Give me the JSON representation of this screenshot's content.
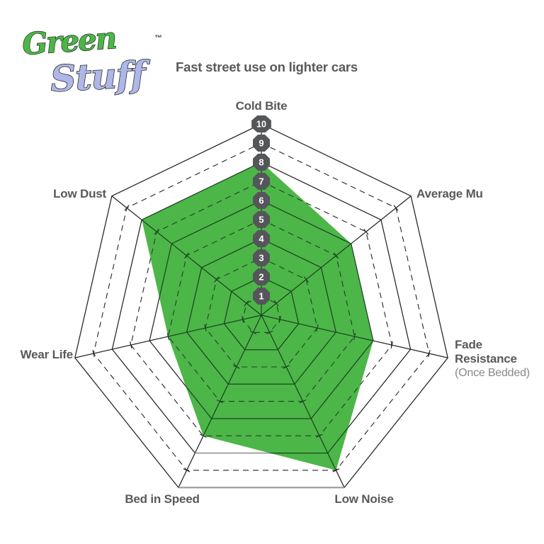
{
  "logo": {
    "word1": "Green",
    "word2": "Stuff",
    "trademark": "™"
  },
  "header": {
    "subtitle": "Fast street use on lighter cars"
  },
  "chart_data": {
    "type": "radar",
    "axes": [
      {
        "label": "Cold Bite"
      },
      {
        "label": "Average Mu"
      },
      {
        "label": "Fade Resistance",
        "note": "(Once Bedded)"
      },
      {
        "label": "Low Noise"
      },
      {
        "label": "Bed in Speed"
      },
      {
        "label": "Wear Life"
      },
      {
        "label": "Low Dust"
      }
    ],
    "series": [
      {
        "name": "Green Stuff",
        "values": [
          8,
          6,
          6,
          9,
          7,
          5,
          8
        ],
        "fill": "#4CB648"
      }
    ],
    "scale": {
      "min": 0,
      "max": 10,
      "rings": [
        1,
        2,
        3,
        4,
        5,
        6,
        7,
        8,
        9,
        10
      ],
      "solid_rings": "even",
      "dashed_rings": "odd",
      "ring_label_style": "numbered badges on top axis"
    },
    "legend": "none",
    "grid": "heptagon web with axis tick marks"
  },
  "colors": {
    "accent_green": "#4CB648",
    "logo_lavender": "#AEB7E8",
    "label_gray": "#58595b",
    "note_gray": "#87898c",
    "badge_gray": "#55565a",
    "grid_black": "#232427",
    "grid_in_green": "#1c451f",
    "bottom_edge_gray": "#97999b"
  }
}
